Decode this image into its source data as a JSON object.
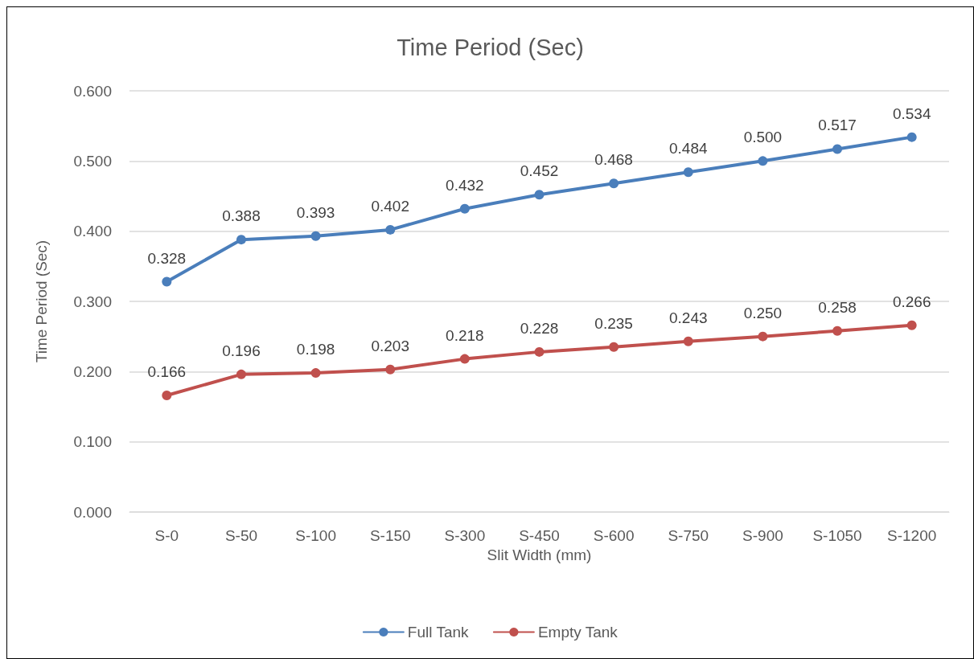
{
  "chart_data": {
    "type": "line",
    "title": "Time Period (Sec)",
    "xlabel": "Slit Width (mm)",
    "ylabel": "Time Period (Sec)",
    "categories": [
      "S-0",
      "S-50",
      "S-100",
      "S-150",
      "S-300",
      "S-450",
      "S-600",
      "S-750",
      "S-900",
      "S-1050",
      "S-1200"
    ],
    "series": [
      {
        "name": "Full Tank",
        "color": "#4a7ebb",
        "values": [
          0.328,
          0.388,
          0.393,
          0.402,
          0.432,
          0.452,
          0.468,
          0.484,
          0.5,
          0.517,
          0.534
        ],
        "value_labels": [
          "0.328",
          "0.388",
          "0.393",
          "0.402",
          "0.432",
          "0.452",
          "0.468",
          "0.484",
          "0.500",
          "0.517",
          "0.534"
        ]
      },
      {
        "name": "Empty Tank",
        "color": "#c0504d",
        "values": [
          0.166,
          0.196,
          0.198,
          0.203,
          0.218,
          0.228,
          0.235,
          0.243,
          0.25,
          0.258,
          0.266
        ],
        "value_labels": [
          "0.166",
          "0.196",
          "0.198",
          "0.203",
          "0.218",
          "0.228",
          "0.235",
          "0.243",
          "0.250",
          "0.258",
          "0.266"
        ]
      }
    ],
    "ylim": [
      0,
      0.6
    ],
    "yticks": [
      {
        "value": 0,
        "label": "0.000"
      },
      {
        "value": 0.1,
        "label": "0.100"
      },
      {
        "value": 0.2,
        "label": "0.200"
      },
      {
        "value": 0.3,
        "label": "0.300"
      },
      {
        "value": 0.4,
        "label": "0.400"
      },
      {
        "value": 0.5,
        "label": "0.500"
      },
      {
        "value": 0.6,
        "label": "0.600"
      }
    ],
    "grid": "y",
    "legend": "bottom",
    "marker": "circle",
    "line_style": "solid"
  }
}
